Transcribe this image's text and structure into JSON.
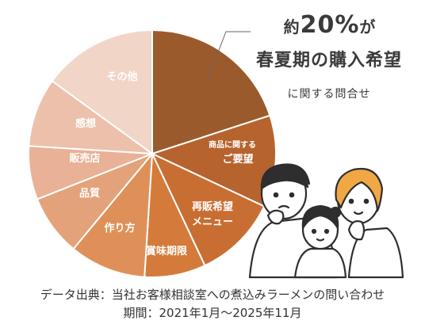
{
  "headline": {
    "prefix": "約",
    "value": "20%",
    "suffix": "が",
    "subject": "春夏期の購入希望",
    "caption": "に関する問合せ"
  },
  "source": {
    "line1": "データ出典：当社お客様相談室への煮込みラーメンの問い合わせ",
    "line2": "期間：2021年1月〜2025年11月"
  },
  "chart_data": {
    "type": "pie",
    "title": "",
    "slices": [
      {
        "label": "春夏期の購入希望",
        "value": 20,
        "color": "#9b5a2c"
      },
      {
        "label": "商品に関する ご要望",
        "value": 12,
        "color": "#b6632e"
      },
      {
        "label": "再販希望 メニュー",
        "value": 11,
        "color": "#c96e33"
      },
      {
        "label": "賞味期限",
        "value": 8,
        "color": "#d47b3c"
      },
      {
        "label": "作り方",
        "value": 10,
        "color": "#df9058"
      },
      {
        "label": "品質",
        "value": 8,
        "color": "#e4a27a"
      },
      {
        "label": "販売店",
        "value": 7,
        "color": "#e9b196"
      },
      {
        "label": "感想",
        "value": 9,
        "color": "#ecc0ab"
      },
      {
        "label": "その他",
        "value": 15,
        "color": "#f1d5c7"
      }
    ]
  },
  "labels": {
    "s1_small": "商品に関する",
    "s1_big": "ご要望",
    "s2_a": "再販希望",
    "s2_b": "メニュー",
    "s3": "賞味期限",
    "s4": "作り方",
    "s5": "品質",
    "s6": "販売店",
    "s7": "感想",
    "s8": "その他"
  },
  "illustration": "family-thinking-illustration"
}
